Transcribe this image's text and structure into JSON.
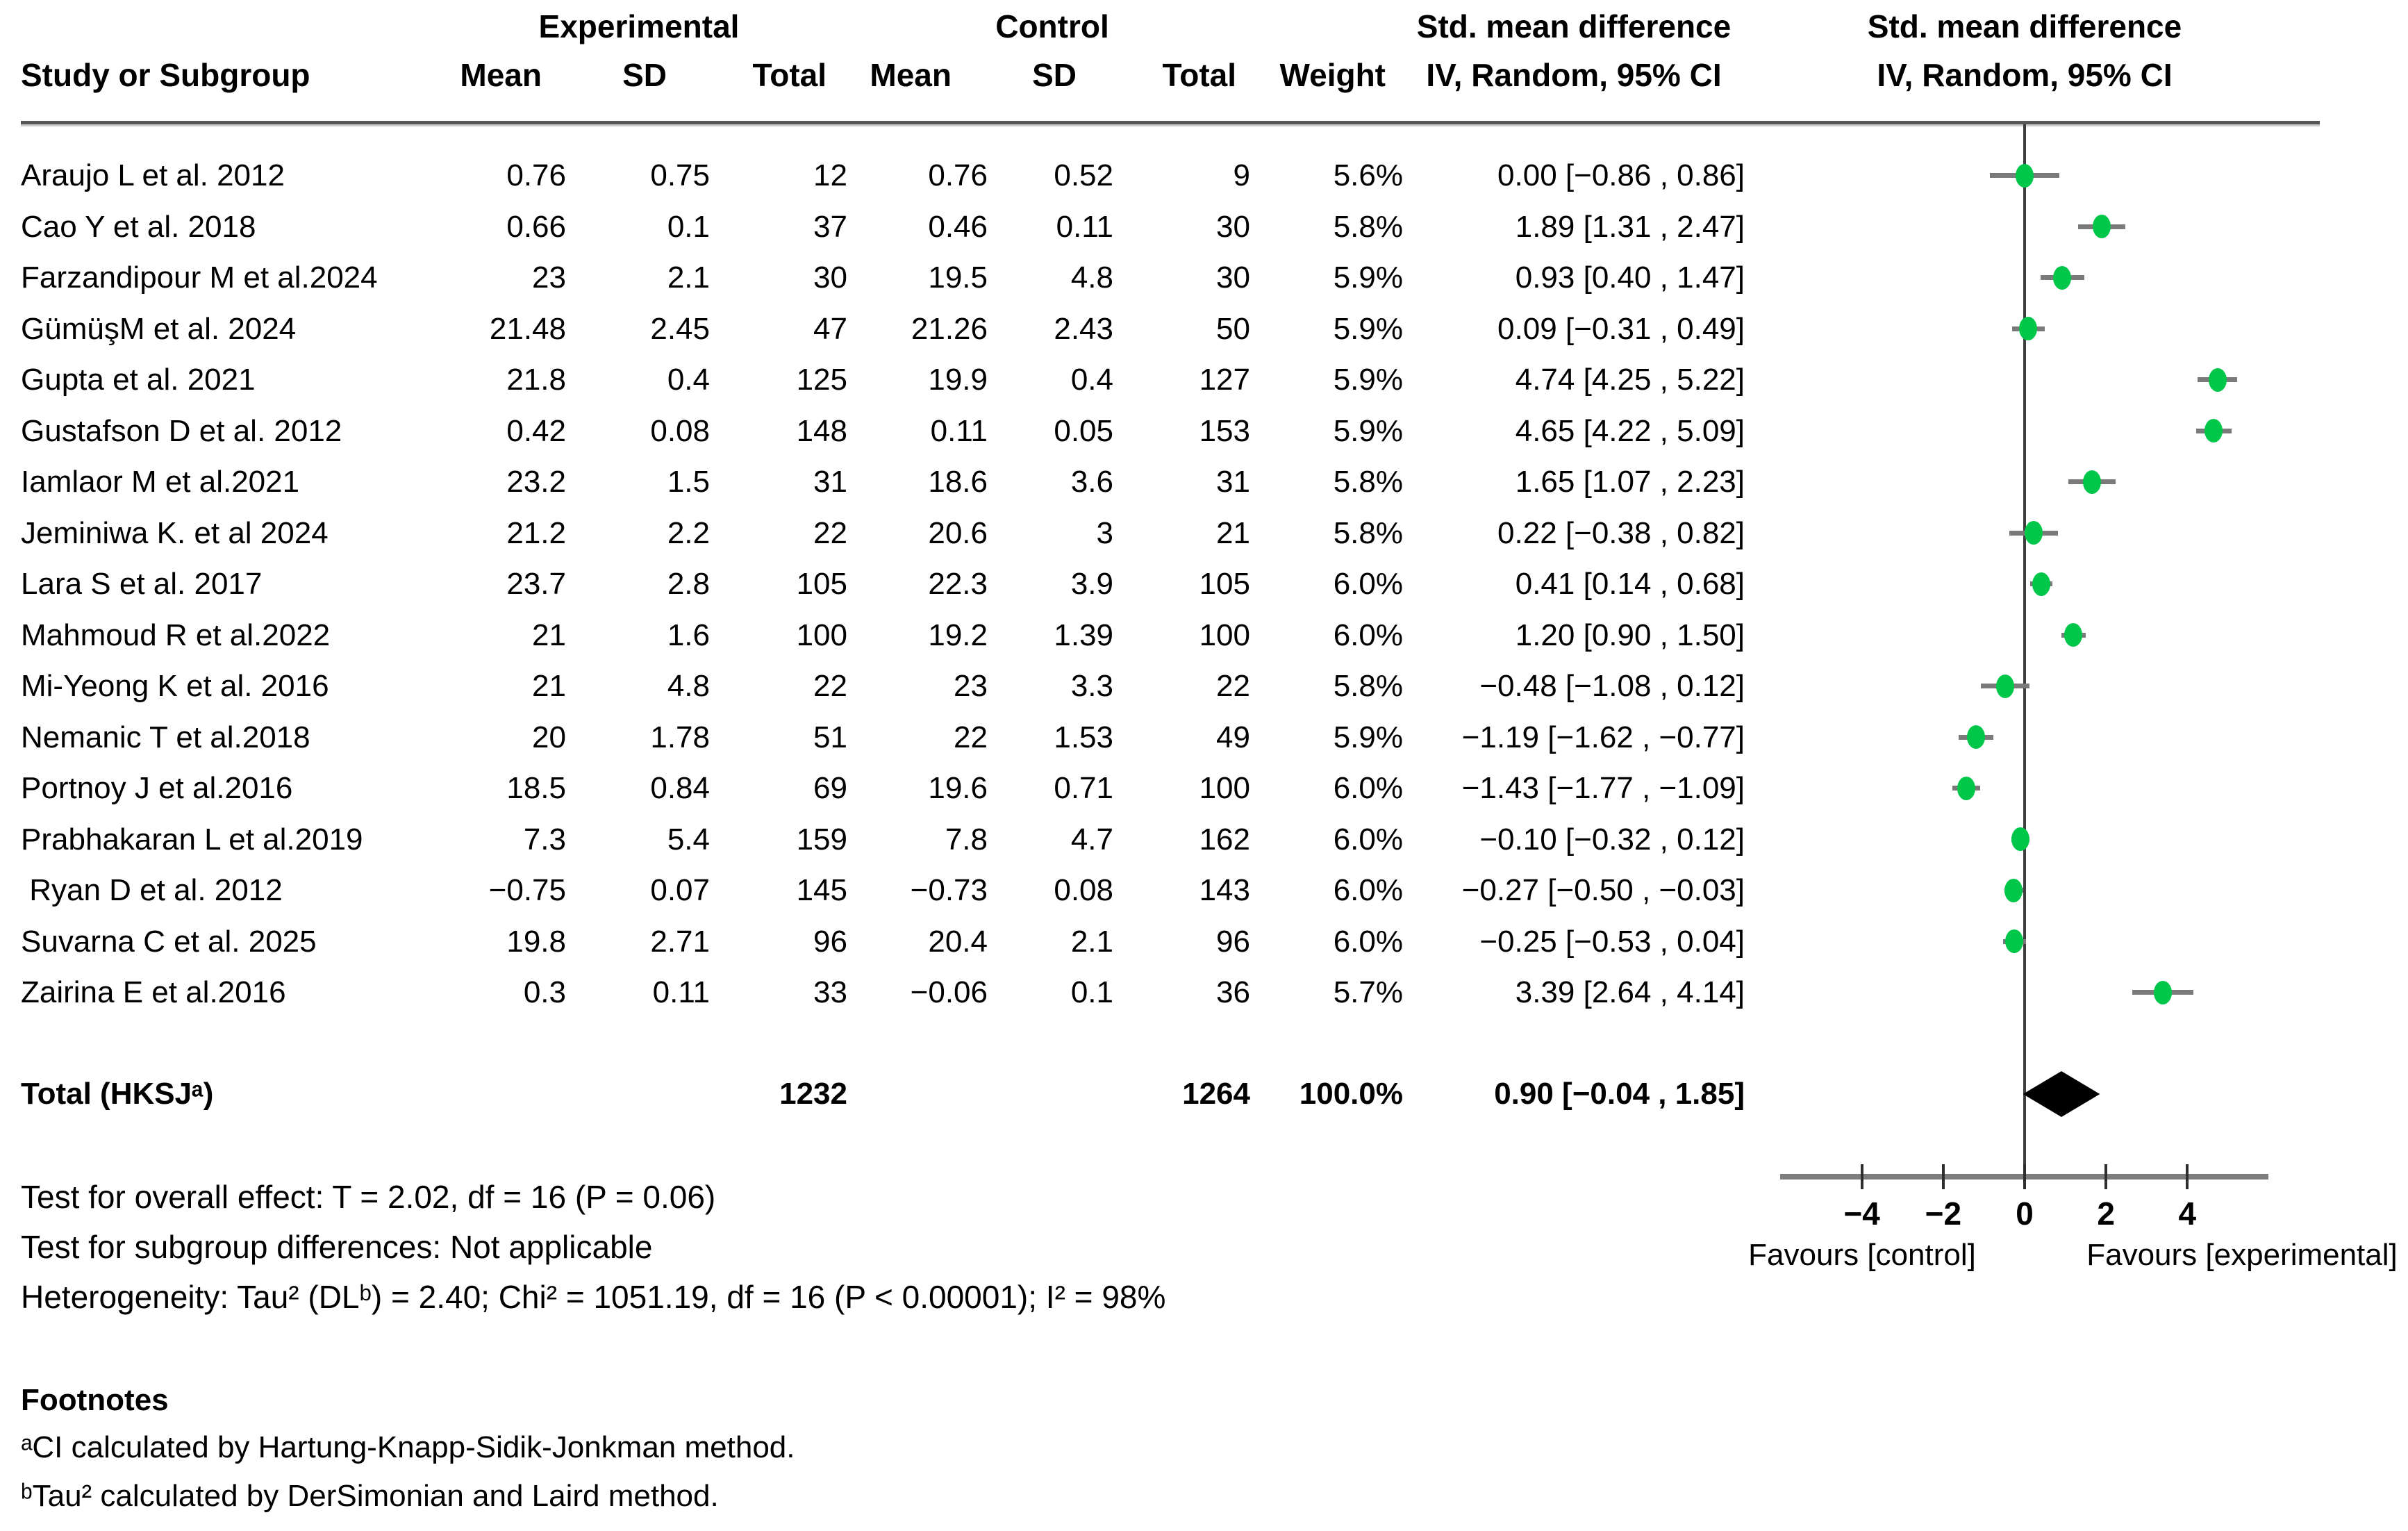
{
  "colors": {
    "marker_green": "#00C64A",
    "ci_gray": "#7a7a7a",
    "axis_gray": "#7d7d7d",
    "diamond_black": "#000000",
    "text": "#000000"
  },
  "chart_data": {
    "type": "forest",
    "subtype": "scatter-with-ci (meta-analysis forest plot)",
    "effect_measure": "Std. mean difference",
    "model": "IV, Random, 95% CI",
    "headers": {
      "study": "Study or Subgroup",
      "experimental": "Experimental",
      "control": "Control",
      "mean": "Mean",
      "sd": "SD",
      "total": "Total",
      "weight": "Weight",
      "smd": "Std. mean difference",
      "method": "IV, Random, 95% CI"
    },
    "studies": [
      {
        "name": "Araujo L et al. 2012",
        "exp_mean": "0.76",
        "exp_sd": "0.75",
        "exp_total": "12",
        "ctl_mean": "0.76",
        "ctl_sd": "0.52",
        "ctl_total": "9",
        "weight": "5.6%",
        "ci_text": "0.00 [−0.86 , 0.86]",
        "est": 0.0,
        "lo": -0.86,
        "hi": 0.86
      },
      {
        "name": "Cao Y et al. 2018",
        "exp_mean": "0.66",
        "exp_sd": "0.1",
        "exp_total": "37",
        "ctl_mean": "0.46",
        "ctl_sd": "0.11",
        "ctl_total": "30",
        "weight": "5.8%",
        "ci_text": "1.89 [1.31 , 2.47]",
        "est": 1.89,
        "lo": 1.31,
        "hi": 2.47
      },
      {
        "name": "Farzandipour M et al.2024",
        "exp_mean": "23",
        "exp_sd": "2.1",
        "exp_total": "30",
        "ctl_mean": "19.5",
        "ctl_sd": "4.8",
        "ctl_total": "30",
        "weight": "5.9%",
        "ci_text": "0.93 [0.40 , 1.47]",
        "est": 0.93,
        "lo": 0.4,
        "hi": 1.47
      },
      {
        "name": "GümüşM et al. 2024",
        "exp_mean": "21.48",
        "exp_sd": "2.45",
        "exp_total": "47",
        "ctl_mean": "21.26",
        "ctl_sd": "2.43",
        "ctl_total": "50",
        "weight": "5.9%",
        "ci_text": "0.09 [−0.31 , 0.49]",
        "est": 0.09,
        "lo": -0.31,
        "hi": 0.49
      },
      {
        "name": "Gupta et al. 2021",
        "exp_mean": "21.8",
        "exp_sd": "0.4",
        "exp_total": "125",
        "ctl_mean": "19.9",
        "ctl_sd": "0.4",
        "ctl_total": "127",
        "weight": "5.9%",
        "ci_text": "4.74 [4.25 , 5.22]",
        "est": 4.74,
        "lo": 4.25,
        "hi": 5.22
      },
      {
        "name": "Gustafson D et al. 2012",
        "exp_mean": "0.42",
        "exp_sd": "0.08",
        "exp_total": "148",
        "ctl_mean": "0.11",
        "ctl_sd": "0.05",
        "ctl_total": "153",
        "weight": "5.9%",
        "ci_text": "4.65 [4.22 , 5.09]",
        "est": 4.65,
        "lo": 4.22,
        "hi": 5.09
      },
      {
        "name": "Iamlaor M et al.2021",
        "exp_mean": "23.2",
        "exp_sd": "1.5",
        "exp_total": "31",
        "ctl_mean": "18.6",
        "ctl_sd": "3.6",
        "ctl_total": "31",
        "weight": "5.8%",
        "ci_text": "1.65 [1.07 , 2.23]",
        "est": 1.65,
        "lo": 1.07,
        "hi": 2.23
      },
      {
        "name": "Jeminiwa K. et al 2024",
        "exp_mean": "21.2",
        "exp_sd": "2.2",
        "exp_total": "22",
        "ctl_mean": "20.6",
        "ctl_sd": "3",
        "ctl_total": "21",
        "weight": "5.8%",
        "ci_text": "0.22 [−0.38 , 0.82]",
        "est": 0.22,
        "lo": -0.38,
        "hi": 0.82
      },
      {
        "name": "Lara S et al. 2017",
        "exp_mean": "23.7",
        "exp_sd": "2.8",
        "exp_total": "105",
        "ctl_mean": "22.3",
        "ctl_sd": "3.9",
        "ctl_total": "105",
        "weight": "6.0%",
        "ci_text": "0.41 [0.14 , 0.68]",
        "est": 0.41,
        "lo": 0.14,
        "hi": 0.68
      },
      {
        "name": "Mahmoud R et al.2022",
        "exp_mean": "21",
        "exp_sd": "1.6",
        "exp_total": "100",
        "ctl_mean": "19.2",
        "ctl_sd": "1.39",
        "ctl_total": "100",
        "weight": "6.0%",
        "ci_text": "1.20 [0.90 , 1.50]",
        "est": 1.2,
        "lo": 0.9,
        "hi": 1.5
      },
      {
        "name": "Mi-Yeong K et al. 2016",
        "exp_mean": "21",
        "exp_sd": "4.8",
        "exp_total": "22",
        "ctl_mean": "23",
        "ctl_sd": "3.3",
        "ctl_total": "22",
        "weight": "5.8%",
        "ci_text": "−0.48 [−1.08 , 0.12]",
        "est": -0.48,
        "lo": -1.08,
        "hi": 0.12
      },
      {
        "name": "Nemanic T et al.2018",
        "exp_mean": "20",
        "exp_sd": "1.78",
        "exp_total": "51",
        "ctl_mean": "22",
        "ctl_sd": "1.53",
        "ctl_total": "49",
        "weight": "5.9%",
        "ci_text": "−1.19 [−1.62 , −0.77]",
        "est": -1.19,
        "lo": -1.62,
        "hi": -0.77
      },
      {
        "name": "Portnoy J et al.2016",
        "exp_mean": "18.5",
        "exp_sd": "0.84",
        "exp_total": "69",
        "ctl_mean": "19.6",
        "ctl_sd": "0.71",
        "ctl_total": "100",
        "weight": "6.0%",
        "ci_text": "−1.43 [−1.77 , −1.09]",
        "est": -1.43,
        "lo": -1.77,
        "hi": -1.09
      },
      {
        "name": "Prabhakaran L et al.2019",
        "exp_mean": "7.3",
        "exp_sd": "5.4",
        "exp_total": "159",
        "ctl_mean": "7.8",
        "ctl_sd": "4.7",
        "ctl_total": "162",
        "weight": "6.0%",
        "ci_text": "−0.10 [−0.32 , 0.12]",
        "est": -0.1,
        "lo": -0.32,
        "hi": 0.12
      },
      {
        "name": " Ryan D et al. 2012",
        "exp_mean": "−0.75",
        "exp_sd": "0.07",
        "exp_total": "145",
        "ctl_mean": "−0.73",
        "ctl_sd": "0.08",
        "ctl_total": "143",
        "weight": "6.0%",
        "ci_text": "−0.27 [−0.50 , −0.03]",
        "est": -0.27,
        "lo": -0.5,
        "hi": -0.03
      },
      {
        "name": "Suvarna C et al. 2025",
        "exp_mean": "19.8",
        "exp_sd": "2.71",
        "exp_total": "96",
        "ctl_mean": "20.4",
        "ctl_sd": "2.1",
        "ctl_total": "96",
        "weight": "6.0%",
        "ci_text": "−0.25 [−0.53 , 0.04]",
        "est": -0.25,
        "lo": -0.53,
        "hi": 0.04
      },
      {
        "name": "Zairina E et al.2016",
        "exp_mean": "0.3",
        "exp_sd": "0.11",
        "exp_total": "33",
        "ctl_mean": "−0.06",
        "ctl_sd": "0.1",
        "ctl_total": "36",
        "weight": "5.7%",
        "ci_text": "3.39 [2.64 , 4.14]",
        "est": 3.39,
        "lo": 2.64,
        "hi": 4.14
      }
    ],
    "total": {
      "label": "Total (HKSJᵃ)",
      "exp_total": "1232",
      "ctl_total": "1264",
      "weight": "100.0%",
      "ci_text": "0.90 [−0.04 , 1.85]",
      "est": 0.9,
      "lo": -0.04,
      "hi": 1.85
    },
    "stats": [
      "Test for overall effect: T = 2.02, df = 16 (P = 0.06)",
      "Test for subgroup differences: Not applicable",
      "Heterogeneity: Tau² (DLᵇ) = 2.40; Chi² = 1051.19, df = 16 (P < 0.00001); I² = 98%"
    ],
    "footnotes": {
      "title": "Footnotes",
      "items": [
        "ᵃCI calculated by Hartung-Knapp-Sidik-Jonkman method.",
        "ᵇTau² calculated by DerSimonian and Laird method."
      ]
    },
    "xaxis": {
      "ticks": [
        -4,
        -2,
        0,
        2,
        4
      ],
      "tick_labels": [
        "−4",
        "−2",
        "0",
        "2",
        "4"
      ],
      "range": [
        -6,
        6
      ],
      "favours_left": "Favours [control]",
      "favours_right": "Favours [experimental]"
    }
  }
}
